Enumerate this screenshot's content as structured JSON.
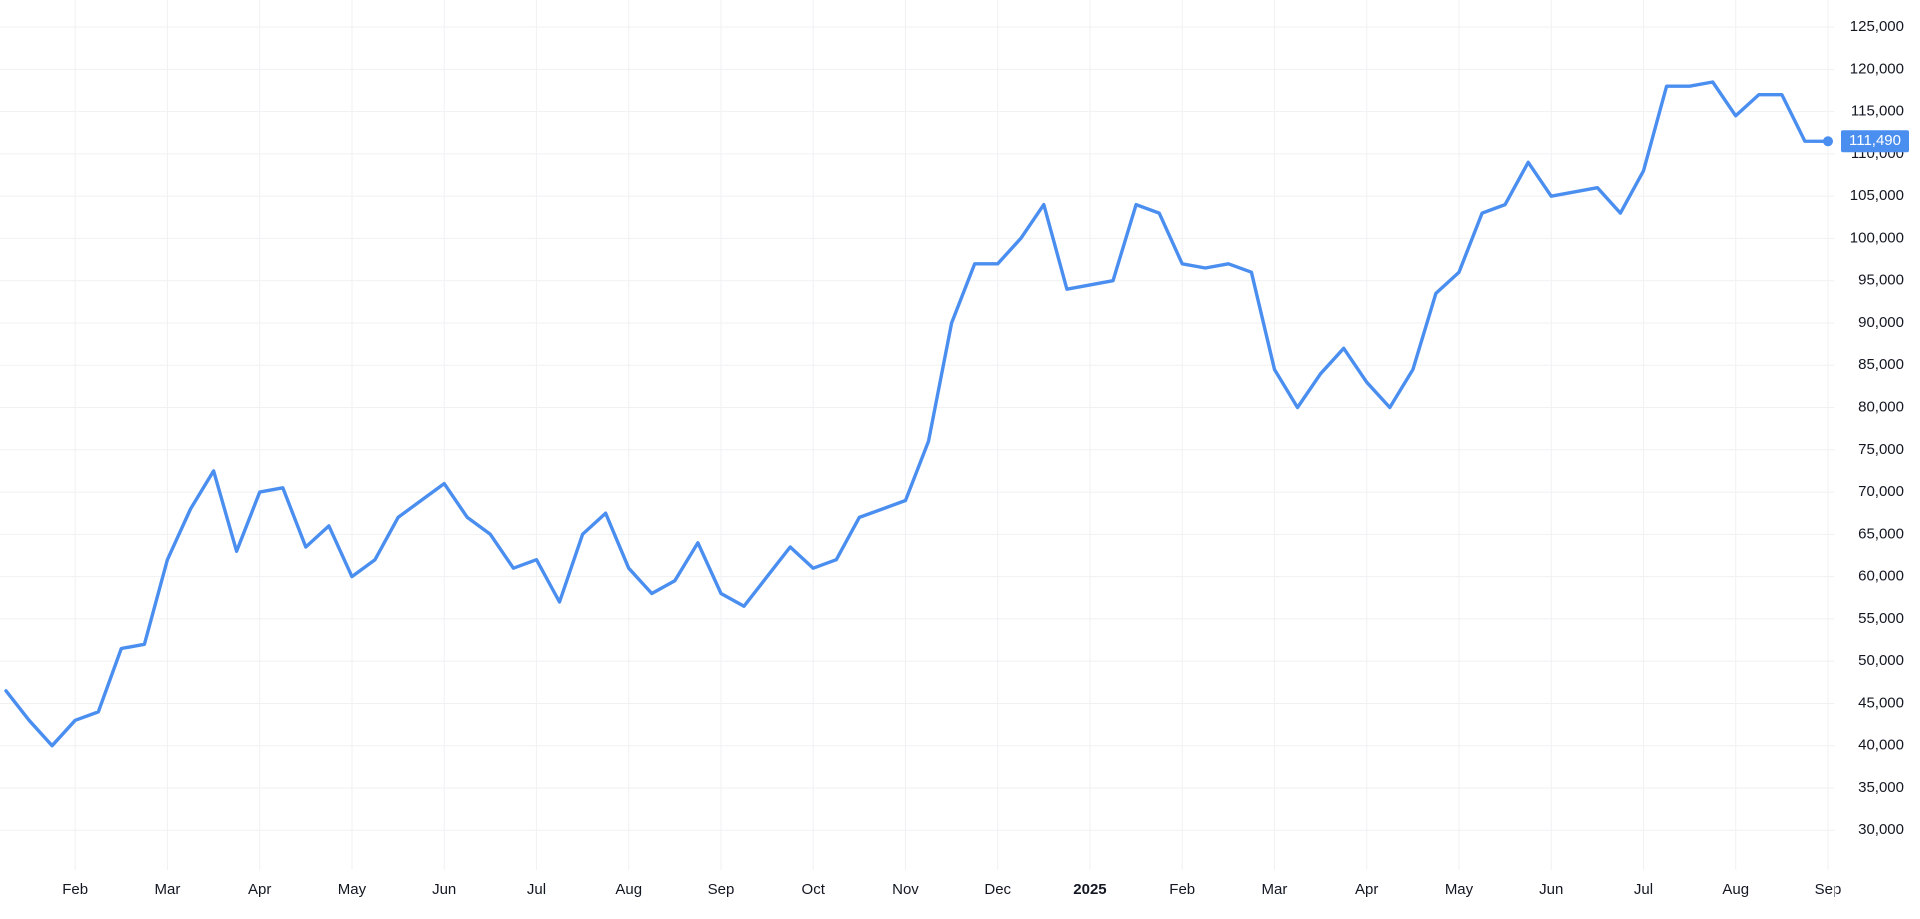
{
  "chart_data": {
    "type": "line",
    "color": "#4a8ef0",
    "grid": true,
    "categories": [
      null,
      null,
      null,
      "Feb",
      null,
      null,
      null,
      "Mar",
      null,
      null,
      null,
      "Apr",
      null,
      null,
      null,
      "May",
      null,
      null,
      null,
      "Jun",
      null,
      null,
      null,
      "Jul",
      null,
      null,
      null,
      "Aug",
      null,
      null,
      null,
      "Sep",
      null,
      null,
      null,
      "Oct",
      null,
      null,
      null,
      "Nov",
      null,
      null,
      null,
      "Dec",
      null,
      null,
      null,
      "2025",
      null,
      null,
      null,
      "Feb",
      null,
      null,
      null,
      "Mar",
      null,
      null,
      null,
      "Apr",
      null,
      null,
      null,
      "May",
      null,
      null,
      null,
      "Jun",
      null,
      null,
      null,
      "Jul",
      null,
      null,
      null,
      "Aug",
      null,
      null,
      null,
      "Sep"
    ],
    "values": [
      46500,
      43000,
      40000,
      43000,
      44000,
      51500,
      52000,
      62000,
      68000,
      72500,
      63000,
      70000,
      70500,
      63500,
      66000,
      60000,
      62000,
      67000,
      69000,
      71000,
      67000,
      65000,
      61000,
      62000,
      57000,
      65000,
      67500,
      61000,
      58000,
      59500,
      64000,
      58000,
      56500,
      60000,
      63500,
      61000,
      62000,
      67000,
      68000,
      69000,
      76000,
      90000,
      97000,
      97000,
      100000,
      104000,
      94000,
      94500,
      95000,
      104000,
      103000,
      97000,
      96500,
      97000,
      96000,
      84500,
      80000,
      84000,
      87000,
      83000,
      80000,
      84500,
      93500,
      96000,
      103000,
      104000,
      109000,
      105000,
      105500,
      106000,
      103000,
      108000,
      118000,
      118000,
      118500,
      114500,
      117000,
      117000,
      111500,
      111490
    ],
    "last_price_label": "111,490",
    "ylim": [
      25300,
      128200
    ],
    "yticks": [
      {
        "value": 30000,
        "label": "30,000"
      },
      {
        "value": 35000,
        "label": "35,000"
      },
      {
        "value": 40000,
        "label": "40,000"
      },
      {
        "value": 45000,
        "label": "45,000"
      },
      {
        "value": 50000,
        "label": "50,000"
      },
      {
        "value": 55000,
        "label": "55,000"
      },
      {
        "value": 60000,
        "label": "60,000"
      },
      {
        "value": 65000,
        "label": "65,000"
      },
      {
        "value": 70000,
        "label": "70,000"
      },
      {
        "value": 75000,
        "label": "75,000"
      },
      {
        "value": 80000,
        "label": "80,000"
      },
      {
        "value": 85000,
        "label": "85,000"
      },
      {
        "value": 90000,
        "label": "90,000"
      },
      {
        "value": 95000,
        "label": "95,000"
      },
      {
        "value": 100000,
        "label": "100,000"
      },
      {
        "value": 105000,
        "label": "105,000"
      },
      {
        "value": 110000,
        "label": "110,000"
      },
      {
        "value": 115000,
        "label": "115,000"
      },
      {
        "value": 120000,
        "label": "120,000"
      },
      {
        "value": 125000,
        "label": "125,000"
      }
    ]
  }
}
